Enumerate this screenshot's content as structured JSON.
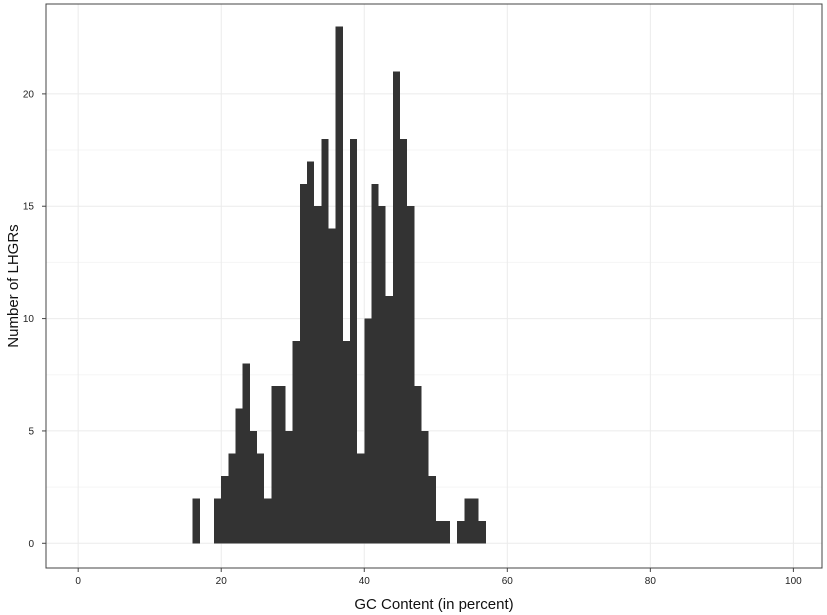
{
  "chart_data": {
    "type": "bar",
    "subtype": "histogram",
    "title": "",
    "xlabel": "GC Content (in percent)",
    "ylabel": "Number of LHGRs",
    "xlim": [
      -4.5,
      104
    ],
    "ylim": [
      -1.1,
      24
    ],
    "xticks": [
      0,
      20,
      40,
      60,
      80,
      100
    ],
    "yticks": [
      0,
      5,
      10,
      15,
      20
    ],
    "grid": true,
    "bin_width": 1,
    "bar_color": "#333333",
    "bins": [
      {
        "x": 16,
        "count": 2
      },
      {
        "x": 19,
        "count": 2
      },
      {
        "x": 20,
        "count": 3
      },
      {
        "x": 21,
        "count": 4
      },
      {
        "x": 22,
        "count": 6
      },
      {
        "x": 23,
        "count": 8
      },
      {
        "x": 24,
        "count": 5
      },
      {
        "x": 25,
        "count": 4
      },
      {
        "x": 26,
        "count": 2
      },
      {
        "x": 27,
        "count": 7
      },
      {
        "x": 28,
        "count": 7
      },
      {
        "x": 29,
        "count": 5
      },
      {
        "x": 30,
        "count": 9
      },
      {
        "x": 31,
        "count": 16
      },
      {
        "x": 32,
        "count": 17
      },
      {
        "x": 33,
        "count": 15
      },
      {
        "x": 34,
        "count": 18
      },
      {
        "x": 35,
        "count": 14
      },
      {
        "x": 36,
        "count": 23
      },
      {
        "x": 37,
        "count": 9
      },
      {
        "x": 38,
        "count": 18
      },
      {
        "x": 39,
        "count": 4
      },
      {
        "x": 40,
        "count": 10
      },
      {
        "x": 41,
        "count": 16
      },
      {
        "x": 42,
        "count": 15
      },
      {
        "x": 43,
        "count": 11
      },
      {
        "x": 44,
        "count": 21
      },
      {
        "x": 45,
        "count": 18
      },
      {
        "x": 46,
        "count": 15
      },
      {
        "x": 47,
        "count": 7
      },
      {
        "x": 48,
        "count": 5
      },
      {
        "x": 49,
        "count": 3
      },
      {
        "x": 50,
        "count": 1
      },
      {
        "x": 51,
        "count": 1
      },
      {
        "x": 53,
        "count": 1
      },
      {
        "x": 54,
        "count": 2
      },
      {
        "x": 55,
        "count": 2
      },
      {
        "x": 56,
        "count": 1
      }
    ]
  }
}
